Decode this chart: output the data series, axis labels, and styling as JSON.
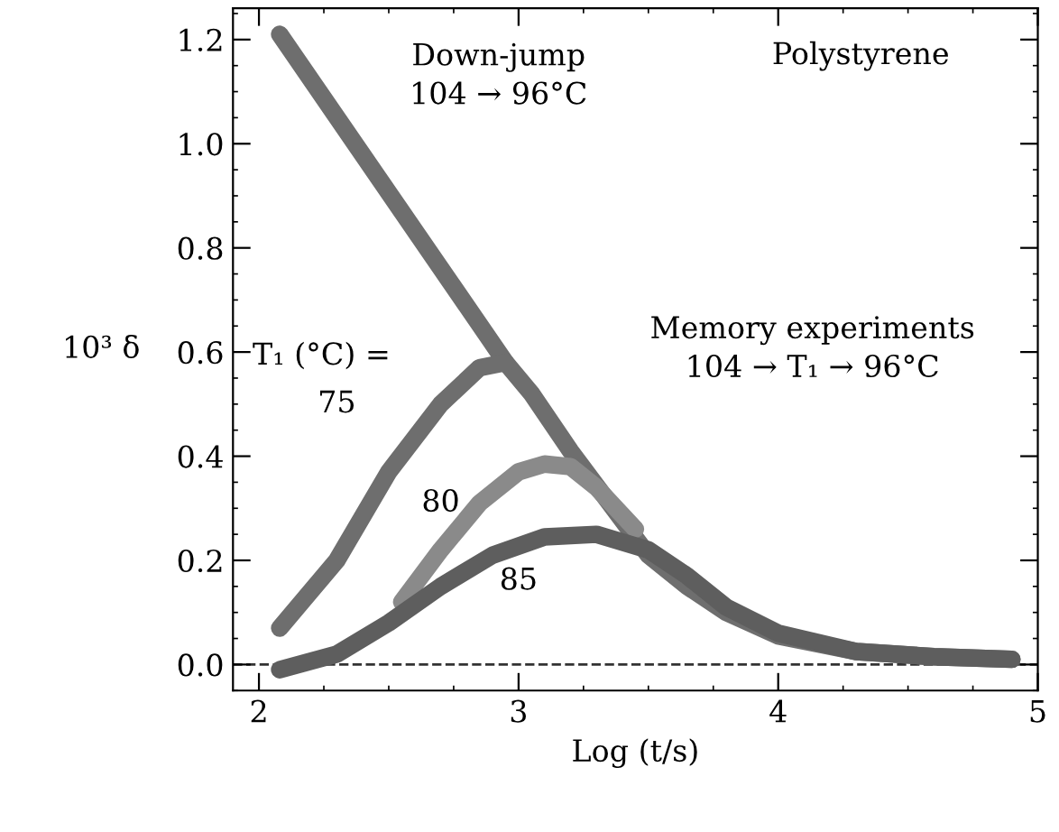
{
  "chart_data": {
    "type": "line",
    "xlabel": "Log (t/s)",
    "ylabel": "10³ δ",
    "xlim": [
      1.9,
      5
    ],
    "xticks": [
      2,
      3,
      4,
      5
    ],
    "ylim": [
      -0.05,
      1.26
    ],
    "yticks": [
      {
        "value": 0,
        "label": "0.0"
      },
      {
        "value": 0.2,
        "label": "0.2"
      },
      {
        "value": 0.4,
        "label": "0.4"
      },
      {
        "value": 0.6,
        "label": "0.6"
      },
      {
        "value": 0.8,
        "label": "0.8"
      },
      {
        "value": 1.0,
        "label": "1.0"
      },
      {
        "value": 1.2,
        "label": "1.2"
      }
    ],
    "grid": false,
    "marker": "none",
    "line_style": "solid",
    "series": [
      {
        "color": "#6e6e6e",
        "x": [
          2.08,
          2.95,
          3.05,
          3.2,
          3.35,
          3.5,
          3.65,
          3.8,
          4.0,
          4.3,
          4.6,
          4.9
        ],
        "values": [
          1.21,
          0.58,
          0.52,
          0.41,
          0.31,
          0.21,
          0.15,
          0.1,
          0.055,
          0.025,
          0.015,
          0.01
        ]
      },
      {
        "name": "75",
        "color": "#6e6e6e",
        "x": [
          2.08,
          2.3,
          2.5,
          2.7,
          2.85,
          2.95
        ],
        "values": [
          0.07,
          0.2,
          0.37,
          0.5,
          0.57,
          0.58
        ]
      },
      {
        "name": "80",
        "color": "#8a8a8a",
        "x": [
          2.55,
          2.7,
          2.85,
          3.0,
          3.1,
          3.2,
          3.3,
          3.45
        ],
        "values": [
          0.12,
          0.22,
          0.31,
          0.37,
          0.385,
          0.38,
          0.34,
          0.26
        ]
      },
      {
        "name": "85",
        "color": "#5e5e5e",
        "x": [
          2.08,
          2.3,
          2.5,
          2.7,
          2.9,
          3.1,
          3.3,
          3.5,
          3.65,
          3.8,
          4.0,
          4.3,
          4.6,
          4.9
        ],
        "values": [
          -0.01,
          0.02,
          0.08,
          0.15,
          0.21,
          0.245,
          0.25,
          0.22,
          0.17,
          0.11,
          0.06,
          0.025,
          0.015,
          0.01
        ]
      }
    ],
    "ref_lines": [
      {
        "axis": "y",
        "value": 0,
        "color": "#333333",
        "line_style": "dashed"
      }
    ],
    "annotations": [
      "Down-jump\n104 → 96°C",
      "Polystyrene",
      "Memory experiments\n104 → T₁ → 96°C",
      "T₁ (°C) ="
    ]
  }
}
